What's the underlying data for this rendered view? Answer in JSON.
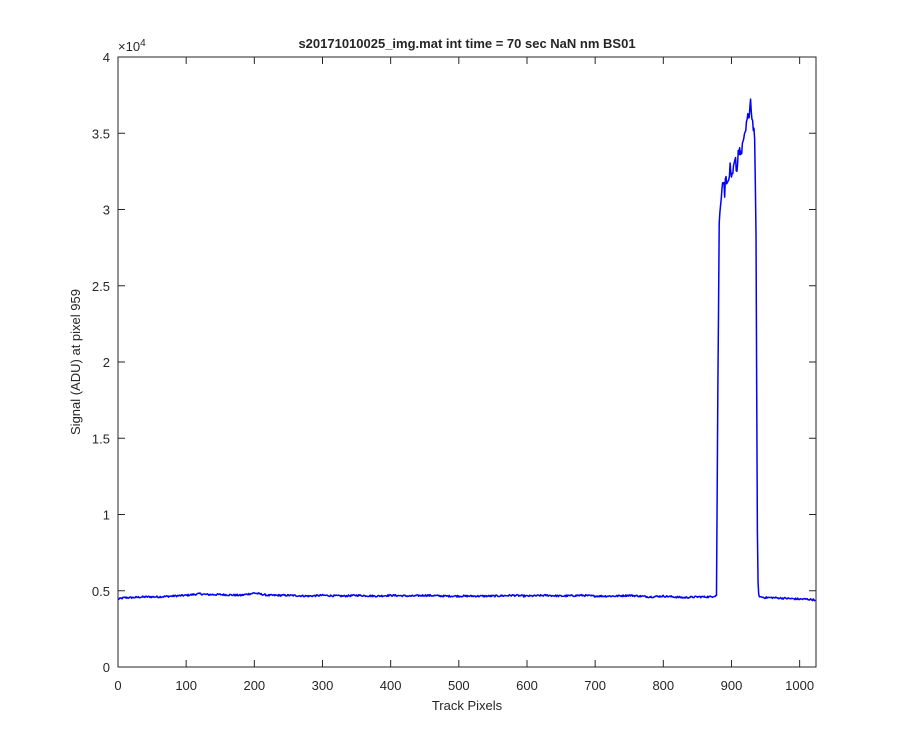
{
  "chart_data": {
    "type": "line",
    "title": "s20171010025_img.mat int time = 70 sec  NaN nm BS01",
    "xlabel": "Track Pixels",
    "ylabel": "Signal (ADU) at pixel 959",
    "xlim": [
      0,
      1024
    ],
    "ylim": [
      0,
      40000
    ],
    "x_ticks": [
      0,
      100,
      200,
      300,
      400,
      500,
      600,
      700,
      800,
      900,
      1000
    ],
    "x_tick_labels": [
      "0",
      "100",
      "200",
      "300",
      "400",
      "500",
      "600",
      "700",
      "800",
      "900",
      "1000"
    ],
    "y_ticks": [
      0,
      5000,
      10000,
      15000,
      20000,
      25000,
      30000,
      35000,
      40000
    ],
    "y_tick_labels": [
      "0",
      "0.5",
      "1",
      "1.5",
      "2",
      "2.5",
      "3",
      "3.5",
      "4"
    ],
    "y_exponent_label": "×10",
    "y_exponent_power": "4",
    "grid": false,
    "series": [
      {
        "color": "#0000ff",
        "x": [
          0,
          10,
          20,
          40,
          60,
          80,
          100,
          120,
          130,
          150,
          180,
          200,
          220,
          250,
          280,
          300,
          330,
          350,
          380,
          400,
          430,
          450,
          480,
          500,
          530,
          550,
          580,
          600,
          630,
          650,
          680,
          700,
          730,
          750,
          780,
          800,
          830,
          850,
          870,
          878,
          880,
          882,
          884,
          886,
          888,
          890,
          892,
          894,
          896,
          898,
          900,
          902,
          904,
          906,
          908,
          910,
          912,
          914,
          916,
          918,
          920,
          922,
          924,
          926,
          928,
          930,
          932,
          934,
          936,
          937,
          938,
          939,
          940,
          942,
          950,
          960,
          980,
          1000,
          1010,
          1023
        ],
        "y": [
          4450,
          4550,
          4550,
          4600,
          4600,
          4650,
          4700,
          4800,
          4750,
          4750,
          4700,
          4850,
          4700,
          4700,
          4650,
          4700,
          4650,
          4700,
          4650,
          4700,
          4650,
          4700,
          4650,
          4650,
          4650,
          4650,
          4700,
          4650,
          4700,
          4650,
          4700,
          4650,
          4650,
          4700,
          4600,
          4650,
          4550,
          4600,
          4600,
          4700,
          18000,
          29000,
          30500,
          31500,
          32000,
          31000,
          32500,
          31500,
          32000,
          32700,
          31800,
          32300,
          32900,
          33200,
          32500,
          33800,
          34000,
          33500,
          34300,
          34500,
          34800,
          35800,
          36200,
          35700,
          37300,
          36000,
          35500,
          34800,
          28000,
          18000,
          9000,
          5500,
          4700,
          4600,
          4550,
          4550,
          4500,
          4450,
          4450,
          4400
        ]
      }
    ]
  }
}
